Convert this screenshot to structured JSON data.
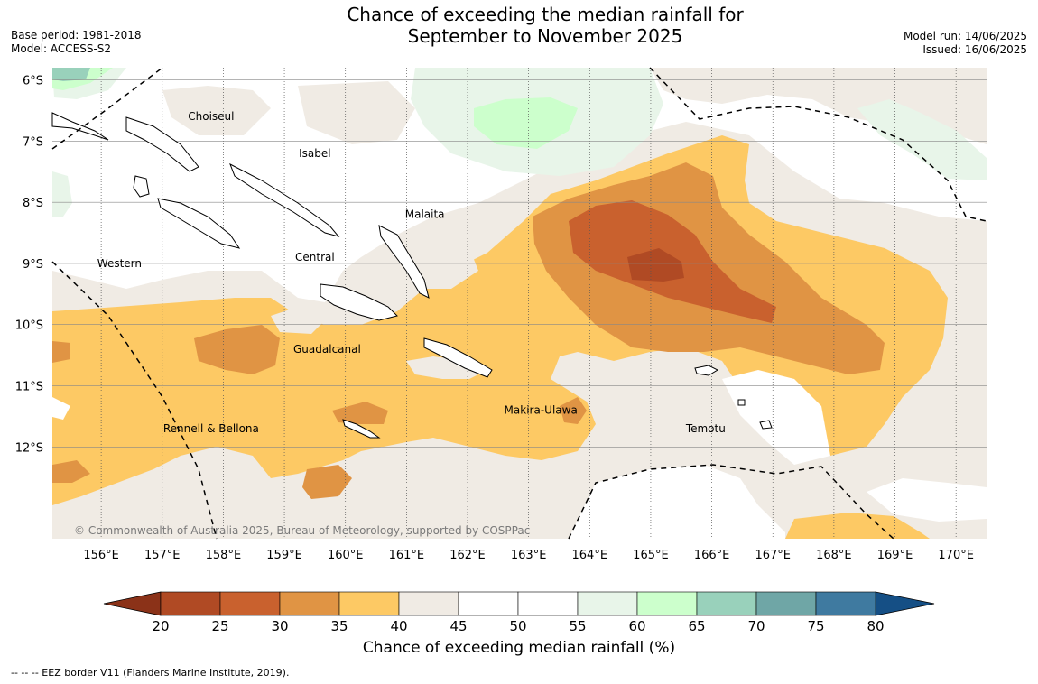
{
  "title_line1": "Chance of exceeding the median rainfall for",
  "title_line2": "September to November 2025",
  "base_period": "Base period: 1981-2018",
  "model": "Model: ACCESS-S2",
  "model_run": "Model run: 14/06/2025",
  "issued": "Issued: 16/06/2025",
  "copyright": "© Commonwealth of Australia 2025, Bureau of Meteorology, supported by COSPPac",
  "lon_ticks": [
    "156°E",
    "157°E",
    "158°E",
    "159°E",
    "160°E",
    "161°E",
    "162°E",
    "163°E",
    "164°E",
    "165°E",
    "166°E",
    "167°E",
    "168°E",
    "169°E",
    "170°E"
  ],
  "lat_ticks": [
    "6°S",
    "7°S",
    "8°S",
    "9°S",
    "10°S",
    "11°S",
    "12°S"
  ],
  "regions": [
    {
      "name": "Choiseul",
      "lon": 157.8,
      "lat": -6.6
    },
    {
      "name": "Isabel",
      "lon": 159.5,
      "lat": -7.2
    },
    {
      "name": "Malaita",
      "lon": 161.3,
      "lat": -8.2
    },
    {
      "name": "Western",
      "lon": 156.3,
      "lat": -9.0
    },
    {
      "name": "Central",
      "lon": 159.5,
      "lat": -8.9
    },
    {
      "name": "Guadalcanal",
      "lon": 159.7,
      "lat": -10.4
    },
    {
      "name": "Makira-Ulawa",
      "lon": 163.2,
      "lat": -11.4
    },
    {
      "name": "Rennell & Bellona",
      "lon": 157.8,
      "lat": -11.7
    },
    {
      "name": "Temotu",
      "lon": 165.9,
      "lat": -11.7
    }
  ],
  "colorbar": {
    "ticks": [
      "20",
      "25",
      "30",
      "35",
      "40",
      "45",
      "50",
      "55",
      "60",
      "65",
      "70",
      "75",
      "80"
    ],
    "colors": [
      "#b04a24",
      "#c9612e",
      "#e09444",
      "#fdc964",
      "#f0ebe4",
      "#ffffff",
      "#ffffff",
      "#e8f5e9",
      "#ccffcc",
      "#99d1bb",
      "#6fa6a6",
      "#3f7aa0",
      "#154f85"
    ],
    "title": "Chance of exceeding median rainfall (%)"
  },
  "footer": "--  --  -- EEZ border V11 (Flanders Marine Institute, 2019)."
}
